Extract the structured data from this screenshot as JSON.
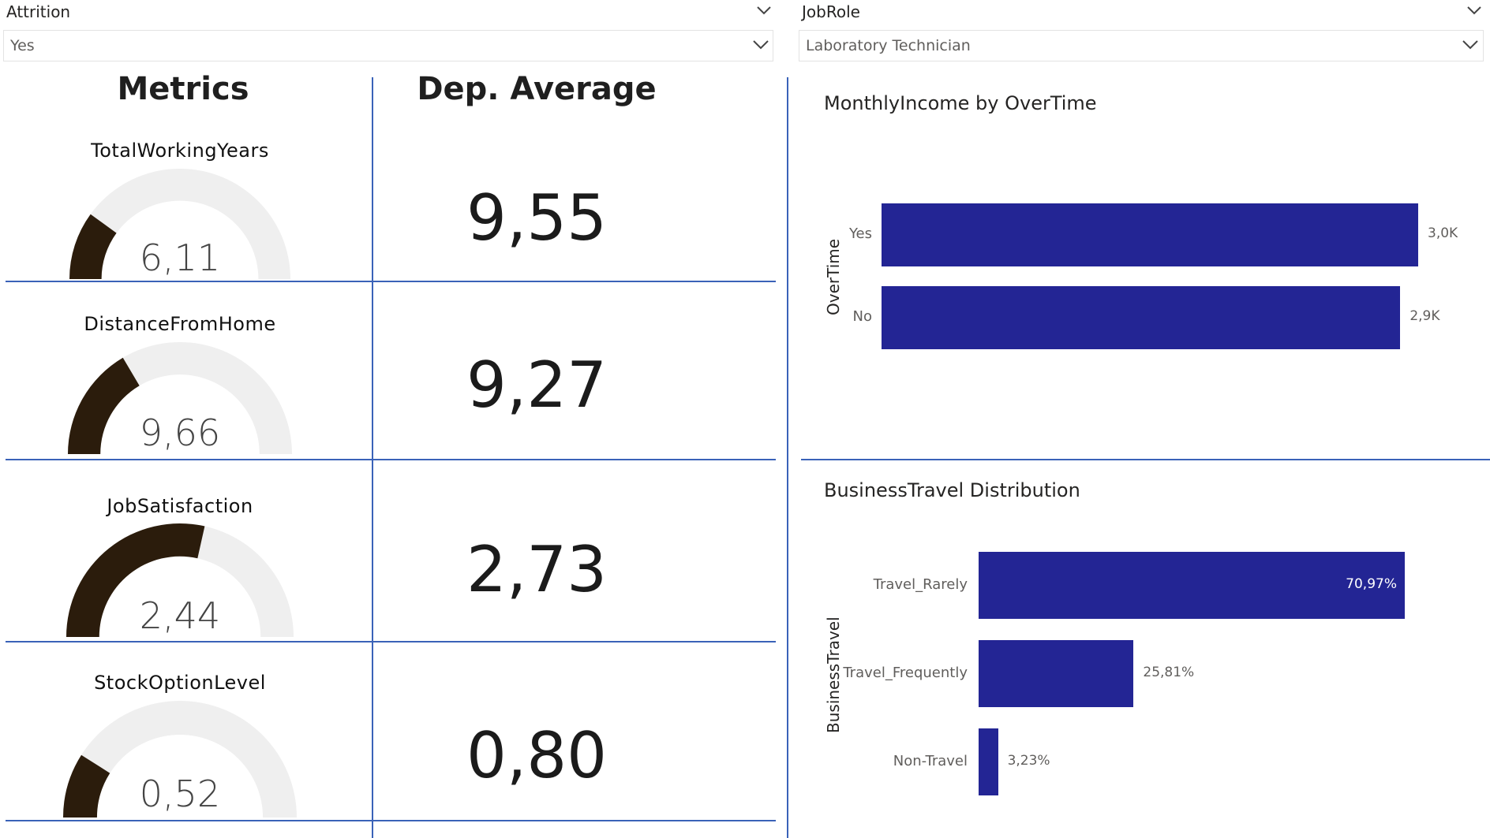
{
  "filters": {
    "attrition": {
      "title": "Attrition",
      "value": "Yes"
    },
    "jobrole": {
      "title": "JobRole",
      "value": "Laboratory Technician"
    }
  },
  "metrics_panel": {
    "metrics_header": "Metrics",
    "average_header": "Dep. Average",
    "rows": [
      {
        "name": "TotalWorkingYears",
        "value": "6,11",
        "fill": 0.2,
        "average": "9,55"
      },
      {
        "name": "DistanceFromHome",
        "value": "9,66",
        "fill": 0.33,
        "average": "9,27"
      },
      {
        "name": "JobSatisfaction",
        "value": "2,44",
        "fill": 0.57,
        "average": "2,73"
      },
      {
        "name": "StockOptionLevel",
        "value": "0,52",
        "fill": 0.18,
        "average": "0,80"
      }
    ]
  },
  "colors": {
    "bar": "#232594",
    "gauge_fill": "#2b1c0c",
    "gauge_track": "#efefef",
    "divider": "#3a62b8"
  },
  "chart_data": [
    {
      "type": "bar",
      "orientation": "horizontal",
      "title": "MonthlyIncome by OverTime",
      "ylabel": "OverTime",
      "categories": [
        "Yes",
        "No"
      ],
      "values": [
        3.0,
        2.9
      ],
      "value_unit": "K",
      "data_labels": [
        "3,0K",
        "2,9K"
      ],
      "xlim": [
        0,
        3.0
      ]
    },
    {
      "type": "bar",
      "orientation": "horizontal",
      "title": "BusinessTravel Distribution",
      "ylabel": "BusinessTravel",
      "categories": [
        "Travel_Rarely",
        "Travel_Frequently",
        "Non-Travel"
      ],
      "values": [
        70.97,
        25.81,
        3.23
      ],
      "data_labels": [
        "70,97%",
        "25,81%",
        "3,23%"
      ],
      "xlim": [
        0,
        70.97
      ]
    }
  ]
}
